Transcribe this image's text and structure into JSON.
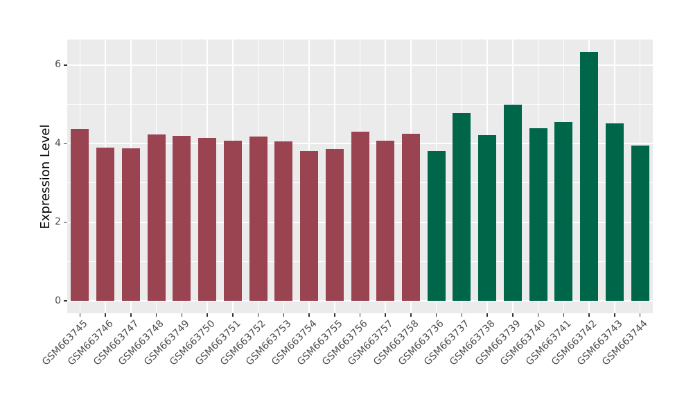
{
  "figure": {
    "background": "#FFFFFF",
    "panel_background": "#EBEBEB",
    "gridline_color": "#FFFFFF",
    "tick_mark_color": "#333333",
    "axis_text_color": "#4D4D4D",
    "axis_title_color": "#000000"
  },
  "chart_data": {
    "type": "bar",
    "title": "",
    "xlabel": "",
    "ylabel": "Expression Level",
    "ylim": [
      -0.33,
      6.63
    ],
    "yticks": [
      0,
      2,
      4,
      6
    ],
    "yticks_minor": [
      1,
      3,
      5
    ],
    "grid": "major+minor, white on gray panel",
    "legend": "none",
    "x_label_rotation_deg": 45,
    "groups": {
      "red": {
        "color": "#9A4452"
      },
      "green": {
        "color": "#00664A"
      }
    },
    "bars": [
      {
        "label": "GSM663745",
        "value": 4.37,
        "group": "red"
      },
      {
        "label": "GSM663746",
        "value": 3.9,
        "group": "red"
      },
      {
        "label": "GSM663747",
        "value": 3.89,
        "group": "red"
      },
      {
        "label": "GSM663748",
        "value": 4.23,
        "group": "red"
      },
      {
        "label": "GSM663749",
        "value": 4.2,
        "group": "red"
      },
      {
        "label": "GSM663750",
        "value": 4.15,
        "group": "red"
      },
      {
        "label": "GSM663751",
        "value": 4.07,
        "group": "red"
      },
      {
        "label": "GSM663752",
        "value": 4.19,
        "group": "red"
      },
      {
        "label": "GSM663753",
        "value": 4.06,
        "group": "red"
      },
      {
        "label": "GSM663754",
        "value": 3.81,
        "group": "red"
      },
      {
        "label": "GSM663755",
        "value": 3.86,
        "group": "red"
      },
      {
        "label": "GSM663756",
        "value": 4.31,
        "group": "red"
      },
      {
        "label": "GSM663757",
        "value": 4.07,
        "group": "red"
      },
      {
        "label": "GSM663758",
        "value": 4.26,
        "group": "red"
      },
      {
        "label": "GSM663736",
        "value": 3.82,
        "group": "green"
      },
      {
        "label": "GSM663737",
        "value": 4.78,
        "group": "green"
      },
      {
        "label": "GSM663738",
        "value": 4.22,
        "group": "green"
      },
      {
        "label": "GSM663739",
        "value": 5.0,
        "group": "green"
      },
      {
        "label": "GSM663740",
        "value": 4.4,
        "group": "green"
      },
      {
        "label": "GSM663741",
        "value": 4.56,
        "group": "green"
      },
      {
        "label": "GSM663742",
        "value": 6.33,
        "group": "green"
      },
      {
        "label": "GSM663743",
        "value": 4.51,
        "group": "green"
      },
      {
        "label": "GSM663744",
        "value": 3.96,
        "group": "green"
      }
    ]
  }
}
